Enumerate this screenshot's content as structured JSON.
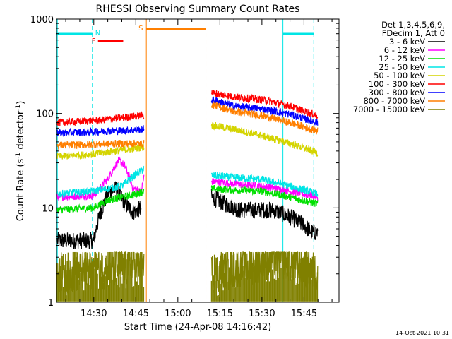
{
  "chart_data": {
    "type": "line",
    "title": "RHESSI Observing Summary Count Rates",
    "xlabel": "Start Time (24-Apr-08 14:16:42)",
    "ylabel_main": "Count Rate (s",
    "ylabel_sup1": "-1",
    "ylabel_mid": " detector",
    "ylabel_sup2": "-1",
    "ylabel_end": ")",
    "y_scale": "log",
    "ylim": [
      1,
      1000
    ],
    "xlim": [
      "14:16:42",
      "15:57:30"
    ],
    "x_ticks": [
      "14:30",
      "14:45",
      "15:00",
      "15:15",
      "15:30",
      "15:45"
    ],
    "y_ticks": [
      "1",
      "10",
      "100",
      "1000"
    ],
    "grid": false,
    "legend": {
      "header_line1": "Det 1,3,4,5,6,9,",
      "header_line2": "FDecim 1, Att 0",
      "entries": [
        {
          "label": "3 - 6 keV",
          "color": "#000000"
        },
        {
          "label": "6 - 12 keV",
          "color": "#ff00ff"
        },
        {
          "label": "12 - 25 keV",
          "color": "#00e000"
        },
        {
          "label": "25 - 50 keV",
          "color": "#00e5e5"
        },
        {
          "label": "50 - 100 keV",
          "color": "#d4d400"
        },
        {
          "label": "100 - 300 keV",
          "color": "#ff0000"
        },
        {
          "label": "300 - 800 keV",
          "color": "#0000ff"
        },
        {
          "label": "800 - 7000 keV",
          "color": "#ff7f00"
        },
        {
          "label": "7000 - 15000 keV",
          "color": "#808000"
        }
      ]
    },
    "flags": [
      {
        "label": "N",
        "color": "#00e5e5"
      },
      {
        "label": "F",
        "color": "#ff0000"
      },
      {
        "label": "S",
        "color": "#ff7f00"
      }
    ],
    "series": [
      {
        "name": "3 - 6 keV",
        "color": "#000000",
        "segments": [
          {
            "x": [
              "14:17",
              "14:26",
              "14:30",
              "14:32",
              "14:35",
              "14:38",
              "14:41",
              "14:44",
              "14:47"
            ],
            "y": [
              4.5,
              4.5,
              4.5,
              8,
              14,
              16,
              11,
              9,
              10
            ]
          },
          {
            "x": [
              "15:12",
              "15:17",
              "15:22",
              "15:28",
              "15:34",
              "15:40",
              "15:45",
              "15:48",
              "15:50"
            ],
            "y": [
              13,
              11,
              9.5,
              9.5,
              9.5,
              8,
              6.5,
              5.5,
              5.5
            ]
          }
        ]
      },
      {
        "name": "6 - 12 keV",
        "color": "#ff00ff",
        "segments": [
          {
            "x": [
              "14:17",
              "14:30",
              "14:35",
              "14:39",
              "14:41",
              "14:44",
              "14:47",
              "14:48"
            ],
            "y": [
              13,
              13.5,
              20,
              32,
              28,
              16,
              15,
              22
            ]
          },
          {
            "x": [
              "15:12",
              "15:20",
              "15:30",
              "15:40",
              "15:45",
              "15:50"
            ],
            "y": [
              19,
              18,
              17,
              15,
              14,
              13
            ]
          }
        ]
      },
      {
        "name": "12 - 25 keV",
        "color": "#00e000",
        "segments": [
          {
            "x": [
              "14:17",
              "14:30",
              "14:35",
              "14:40",
              "14:45",
              "14:48"
            ],
            "y": [
              9.5,
              10,
              12,
              13,
              14,
              15
            ]
          },
          {
            "x": [
              "15:12",
              "15:20",
              "15:30",
              "15:40",
              "15:45",
              "15:50"
            ],
            "y": [
              16,
              15.5,
              15,
              13,
              12,
              11
            ]
          }
        ]
      },
      {
        "name": "25 - 50 keV",
        "color": "#00e5e5",
        "segments": [
          {
            "x": [
              "14:17",
              "14:30",
              "14:40",
              "14:48"
            ],
            "y": [
              14,
              15,
              17,
              26
            ]
          },
          {
            "x": [
              "15:12",
              "15:20",
              "15:30",
              "15:40",
              "15:45",
              "15:50"
            ],
            "y": [
              22,
              21,
              20,
              17,
              15.5,
              14
            ]
          }
        ]
      },
      {
        "name": "50 - 100 keV",
        "color": "#d4d400",
        "segments": [
          {
            "x": [
              "14:17",
              "14:30",
              "14:40",
              "14:48"
            ],
            "y": [
              35,
              37,
              41,
              44
            ]
          },
          {
            "x": [
              "15:12",
              "15:20",
              "15:30",
              "15:40",
              "15:45",
              "15:50"
            ],
            "y": [
              75,
              68,
              58,
              48,
              43,
              38
            ]
          }
        ]
      },
      {
        "name": "100 - 300 keV",
        "color": "#ff0000",
        "segments": [
          {
            "x": [
              "14:17",
              "14:30",
              "14:40",
              "14:48"
            ],
            "y": [
              80,
              84,
              90,
              96
            ]
          },
          {
            "x": [
              "15:12",
              "15:20",
              "15:30",
              "15:40",
              "15:45",
              "15:50"
            ],
            "y": [
              165,
              150,
              140,
              120,
              105,
              95
            ]
          }
        ]
      },
      {
        "name": "300 - 800 keV",
        "color": "#0000ff",
        "segments": [
          {
            "x": [
              "14:17",
              "14:30",
              "14:40",
              "14:48"
            ],
            "y": [
              62,
              64,
              66,
              68
            ]
          },
          {
            "x": [
              "15:12",
              "15:20",
              "15:30",
              "15:40",
              "15:45",
              "15:50"
            ],
            "y": [
              140,
              120,
              112,
              98,
              88,
              80
            ]
          }
        ]
      },
      {
        "name": "800 - 7000 keV",
        "color": "#ff7f00",
        "segments": [
          {
            "x": [
              "14:17",
              "14:30",
              "14:40",
              "14:48"
            ],
            "y": [
              46,
              47,
              48,
              48
            ]
          },
          {
            "x": [
              "15:12",
              "15:20",
              "15:30",
              "15:40",
              "15:45",
              "15:50"
            ],
            "y": [
              125,
              105,
              95,
              80,
              72,
              65
            ]
          }
        ]
      },
      {
        "name": "7000 - 15000 keV",
        "color": "#808000",
        "segments": [
          {
            "x": [
              "14:17",
              "14:48"
            ],
            "y": [
              2,
              2.5
            ]
          },
          {
            "x": [
              "15:12",
              "15:26",
              "15:35",
              "15:43",
              "15:50"
            ],
            "y": [
              2,
              2.5,
              3,
              2.5,
              2
            ]
          }
        ]
      }
    ]
  },
  "footer": {
    "timestamp": "14-Oct-2021 10:31"
  }
}
